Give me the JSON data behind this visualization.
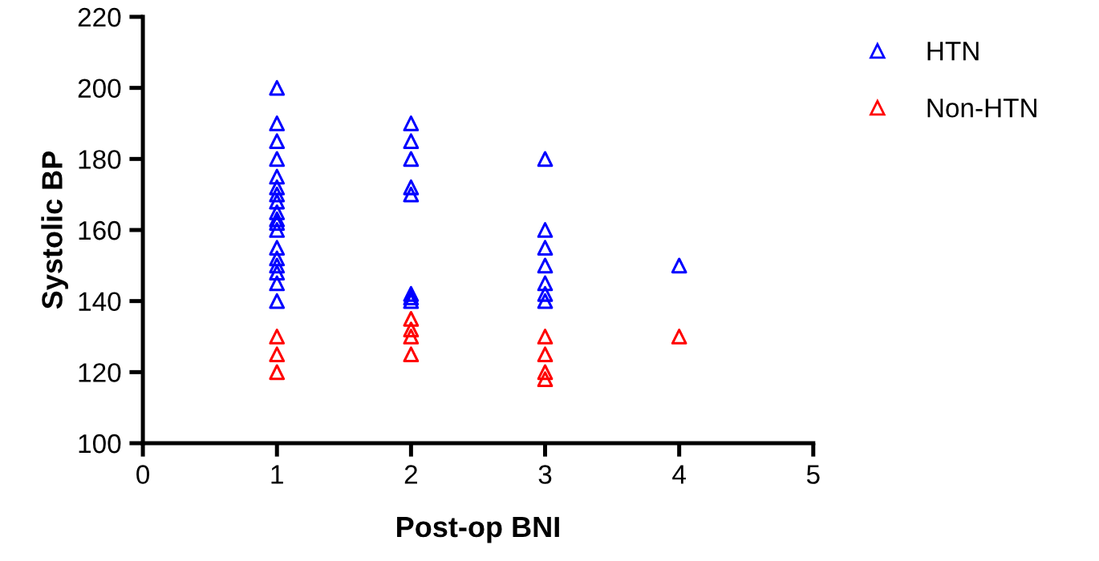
{
  "chart_data": {
    "type": "scatter",
    "xlabel": "Post-op BNI",
    "ylabel": "Systolic BP",
    "xlim": [
      0,
      5
    ],
    "xticks": [
      0,
      1,
      2,
      3,
      4,
      5
    ],
    "ylim": [
      100,
      220
    ],
    "yticks": [
      100,
      120,
      140,
      160,
      180,
      200,
      220
    ],
    "marker": "triangle",
    "legend": "top right",
    "grid": false,
    "series": [
      {
        "name": "HTN",
        "color": "#0000ff",
        "x": [
          1,
          1,
          1,
          1,
          1,
          1,
          1,
          1,
          1,
          1,
          1,
          1,
          1,
          1,
          1,
          1,
          1,
          1,
          2,
          2,
          2,
          2,
          2,
          2,
          2,
          2,
          3,
          3,
          3,
          3,
          3,
          3,
          3,
          4
        ],
        "values": [
          200,
          190,
          185,
          180,
          175,
          172,
          170,
          168,
          165,
          163,
          162,
          160,
          155,
          152,
          150,
          148,
          145,
          140,
          190,
          185,
          180,
          172,
          170,
          142,
          141,
          140,
          180,
          160,
          155,
          150,
          145,
          142,
          140,
          150
        ]
      },
      {
        "name": "Non-HTN",
        "color": "#ff0000",
        "x": [
          1,
          1,
          1,
          2,
          2,
          2,
          2,
          3,
          3,
          3,
          3,
          4
        ],
        "values": [
          130,
          125,
          120,
          135,
          132,
          130,
          125,
          130,
          125,
          120,
          118,
          130
        ]
      }
    ]
  }
}
